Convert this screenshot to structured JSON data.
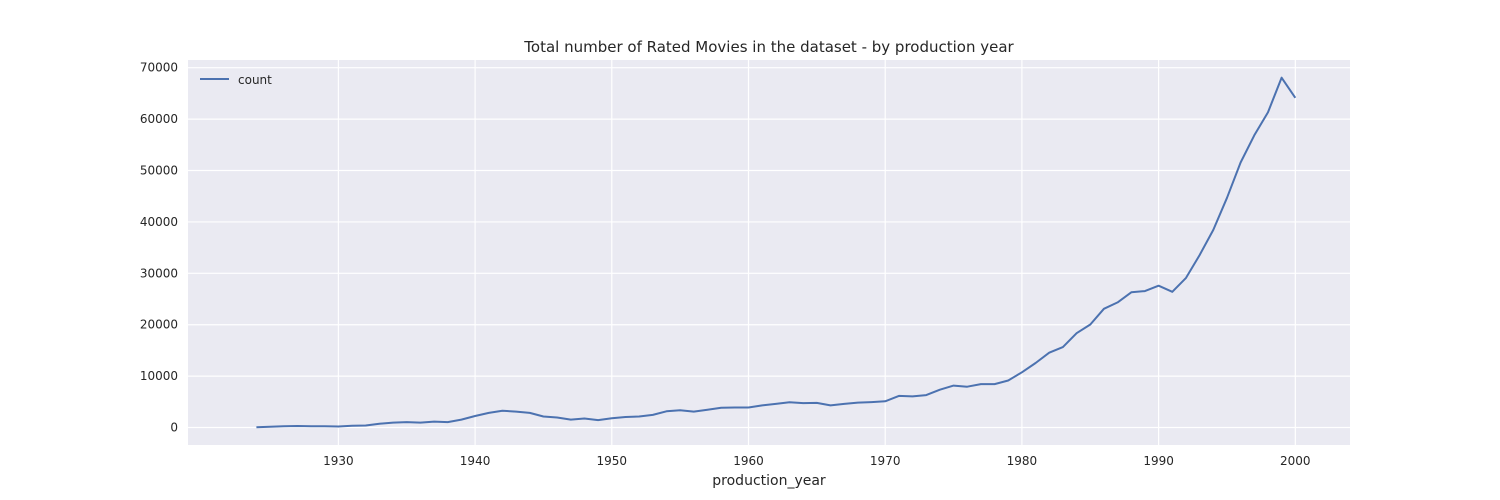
{
  "chart_data": {
    "type": "line",
    "title": "Total number of Rated Movies in the dataset - by production year",
    "xlabel": "production_year",
    "ylabel": "",
    "xlim": [
      1919,
      2004
    ],
    "ylim": [
      -3400,
      71500
    ],
    "xticks": [
      1930,
      1940,
      1950,
      1960,
      1970,
      1980,
      1990,
      2000
    ],
    "yticks": [
      0,
      10000,
      20000,
      30000,
      40000,
      50000,
      60000,
      70000
    ],
    "grid": true,
    "legend": "upper-left",
    "series": [
      {
        "name": "count",
        "color": "#4c72b0",
        "x": [
          1924,
          1925,
          1926,
          1927,
          1928,
          1929,
          1930,
          1931,
          1932,
          1933,
          1934,
          1935,
          1936,
          1937,
          1938,
          1939,
          1940,
          1941,
          1942,
          1943,
          1944,
          1945,
          1946,
          1947,
          1948,
          1949,
          1950,
          1951,
          1952,
          1953,
          1954,
          1955,
          1956,
          1957,
          1958,
          1959,
          1960,
          1961,
          1962,
          1963,
          1964,
          1965,
          1966,
          1967,
          1968,
          1969,
          1970,
          1971,
          1972,
          1973,
          1974,
          1975,
          1976,
          1977,
          1978,
          1979,
          1980,
          1981,
          1982,
          1983,
          1984,
          1985,
          1986,
          1987,
          1988,
          1989,
          1990,
          1991,
          1992,
          1993,
          1994,
          1995,
          1996,
          1997,
          1998,
          1999,
          2000
        ],
        "y": [
          50,
          150,
          250,
          300,
          250,
          250,
          200,
          350,
          400,
          750,
          950,
          1050,
          950,
          1150,
          1050,
          1550,
          2250,
          2850,
          3250,
          3100,
          2850,
          2150,
          1950,
          1550,
          1750,
          1450,
          1800,
          2050,
          2150,
          2450,
          3150,
          3350,
          3100,
          3450,
          3850,
          3900,
          3900,
          4300,
          4600,
          4900,
          4750,
          4800,
          4300,
          4600,
          4850,
          4950,
          5100,
          6150,
          6050,
          6300,
          7350,
          8150,
          7950,
          8450,
          8450,
          9150,
          10750,
          12550,
          14550,
          15650,
          18350,
          20050,
          23100,
          24350,
          26300,
          26550,
          27600,
          26400,
          29100,
          33550,
          38450,
          44700,
          51550,
          56850,
          61350,
          68050,
          64150
        ]
      }
    ]
  }
}
